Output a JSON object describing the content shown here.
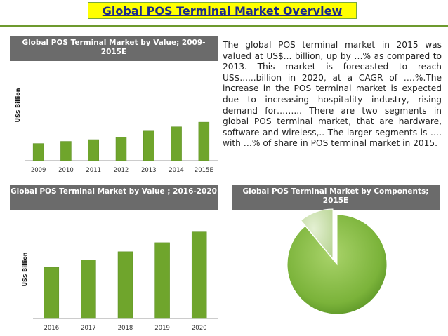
{
  "page": {
    "title": "Global POS Terminal Market Overview",
    "paragraph": "The global POS terminal market in 2015 was valued at US$... billion, up by …% as compared to 2013. This market is forecasted to reach US$......billion in 2020, at a CAGR of ….%.The increase in the POS terminal market is expected due to increasing hospitality industry, rising demand for……... There are two segments in global POS terminal market, that are hardware, software and wireless,.. The larger segments is …. with …% of share in POS terminal market in 2015."
  },
  "colors": {
    "title_bg": "#ffff00",
    "title_text": "#1a2a8a",
    "accent_green": "#6e9a2e",
    "bar_green": "#6fa52c",
    "header_gray": "#6b6b6b"
  },
  "chart_data": [
    {
      "type": "bar",
      "title": "Global POS Terminal Market by Value; 2009-2015E",
      "ylabel": "US$ Billion",
      "xlabel": "",
      "categories": [
        "2009",
        "2010",
        "2011",
        "2012",
        "2013",
        "2014",
        "2015E"
      ],
      "values": [
        48,
        54,
        59,
        66,
        83,
        95,
        108
      ],
      "ylim": [
        0,
        120
      ],
      "grid": false
    },
    {
      "type": "bar",
      "title": "Global POS Terminal Market by Value ; 2016-2020",
      "ylabel": "US$ Billion",
      "xlabel": "",
      "categories": [
        "2016",
        "2017",
        "2018",
        "2019",
        "2020"
      ],
      "values": [
        62,
        71,
        81,
        92,
        105
      ],
      "ylim": [
        0,
        120
      ],
      "grid": false
    },
    {
      "type": "pie",
      "title": "Global POS Terminal Market by Components; 2015E",
      "values": [
        89,
        11
      ],
      "colors": [
        "#6fa52c",
        "#c8dfa8"
      ]
    }
  ]
}
